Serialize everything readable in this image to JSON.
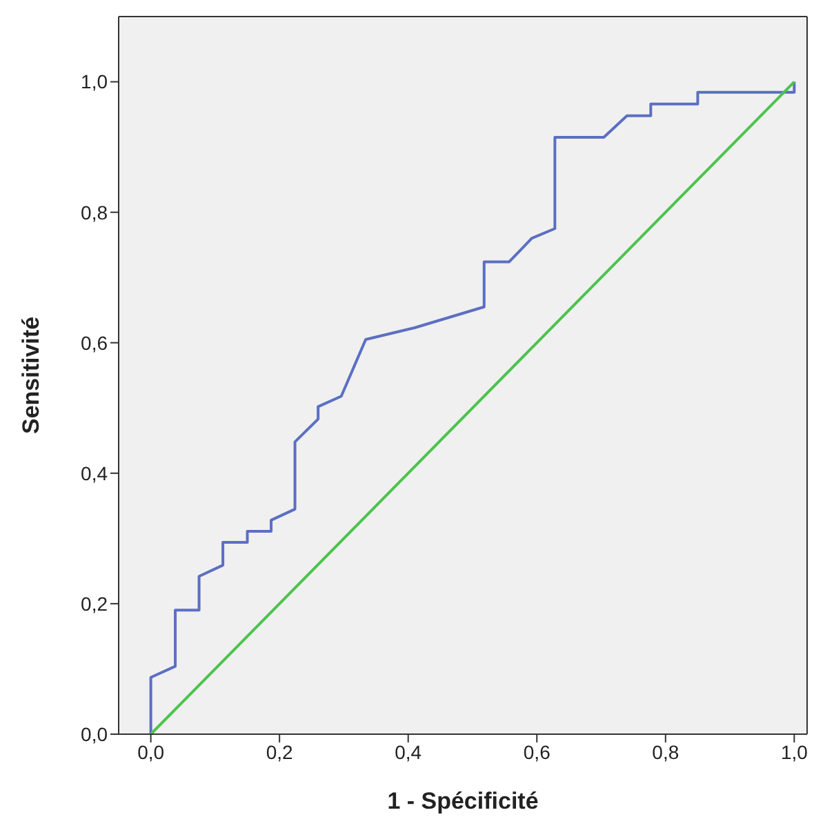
{
  "chart_data": {
    "type": "line",
    "xlabel": "1 - Spécificité",
    "ylabel": "Sensitivité",
    "xlim": [
      -0.05,
      1.02
    ],
    "ylim": [
      0,
      1.1
    ],
    "xticks": [
      {
        "value": 0,
        "label": "0,0"
      },
      {
        "value": 0.2,
        "label": "0,2"
      },
      {
        "value": 0.4,
        "label": "0,4"
      },
      {
        "value": 0.6,
        "label": "0,6"
      },
      {
        "value": 0.8,
        "label": "0,8"
      },
      {
        "value": 1,
        "label": "1,0"
      }
    ],
    "yticks": [
      {
        "value": 0,
        "label": "0,0"
      },
      {
        "value": 0.2,
        "label": "0,2"
      },
      {
        "value": 0.4,
        "label": "0,4"
      },
      {
        "value": 0.6,
        "label": "0,6"
      },
      {
        "value": 0.8,
        "label": "0,8"
      },
      {
        "value": 1,
        "label": "1,0"
      }
    ],
    "grid": false,
    "marker": "none",
    "line_style": "solid",
    "series": [
      {
        "color": "#5b6fc2",
        "x": [
          0,
          0,
          0.038,
          0.038,
          0.075,
          0.075,
          0.112,
          0.112,
          0.15,
          0.15,
          0.187,
          0.187,
          0.224,
          0.224,
          0.26,
          0.26,
          0.296,
          0.334,
          0.41,
          0.518,
          0.518,
          0.557,
          0.592,
          0.628,
          0.628,
          0.704,
          0.74,
          0.777,
          0.777,
          0.85,
          0.85,
          1,
          1
        ],
        "values": [
          0,
          0.087,
          0.104,
          0.19,
          0.19,
          0.242,
          0.259,
          0.294,
          0.294,
          0.311,
          0.311,
          0.328,
          0.345,
          0.448,
          0.483,
          0.502,
          0.518,
          0.605,
          0.623,
          0.655,
          0.724,
          0.724,
          0.76,
          0.775,
          0.915,
          0.915,
          0.948,
          0.948,
          0.966,
          0.966,
          0.984,
          0.984,
          1
        ]
      },
      {
        "color": "#4cc34c",
        "x": [
          0,
          1
        ],
        "values": [
          0,
          1
        ]
      }
    ]
  }
}
